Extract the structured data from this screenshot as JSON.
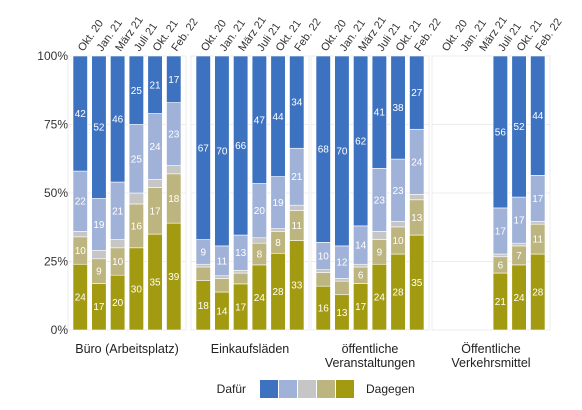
{
  "chart_data": {
    "type": "bar",
    "stacked": true,
    "orientation": "vertical",
    "y_axis": {
      "ticks": [
        "0%",
        "25%",
        "50%",
        "75%",
        "100%"
      ],
      "ylim": [
        0,
        100
      ],
      "unit": "%"
    },
    "x_categories": [
      "Okt. 20",
      "Jan. 21",
      "März 21",
      "Juli 21",
      "Okt. 21",
      "Feb. 22"
    ],
    "segment_colors": [
      "#a29a10",
      "#bdb57f",
      "#c6c6c6",
      "#a1b2d9",
      "#3d72c0"
    ],
    "legend": {
      "left_label": "Dafür",
      "right_label": "Dagegen",
      "colors_left_to_right": [
        "#3d72c0",
        "#a1b2d9",
        "#c6c6c6",
        "#bdb57f",
        "#a29a10"
      ],
      "placement": "bottom"
    },
    "panels": [
      {
        "title_lines": [
          "Büro (Arbeitsplatz)"
        ],
        "bars": [
          {
            "x": "Okt. 20",
            "segments": [
              24,
              10,
              2,
              22,
              42
            ]
          },
          {
            "x": "Jan. 21",
            "segments": [
              17,
              9,
              3,
              19,
              52
            ]
          },
          {
            "x": "März 21",
            "segments": [
              20,
              10,
              3,
              21,
              46
            ]
          },
          {
            "x": "Juli 21",
            "segments": [
              30,
              16,
              4,
              25,
              25
            ]
          },
          {
            "x": "Okt. 21",
            "segments": [
              35,
              17,
              3,
              24,
              21
            ]
          },
          {
            "x": "Feb. 22",
            "segments": [
              39,
              18,
              3,
              23,
              17
            ]
          }
        ]
      },
      {
        "title_lines": [
          "Einkaufsläden"
        ],
        "bars": [
          {
            "x": "Okt. 20",
            "segments": [
              18,
              5,
              1,
              9,
              67
            ]
          },
          {
            "x": "Jan. 21",
            "segments": [
              14,
              5,
              1,
              11,
              70
            ]
          },
          {
            "x": "März 21",
            "segments": [
              17,
              4,
              1,
              13,
              66
            ]
          },
          {
            "x": "Juli 21",
            "segments": [
              24,
              8,
              2,
              20,
              47
            ]
          },
          {
            "x": "Okt. 21",
            "segments": [
              28,
              8,
              1,
              19,
              44
            ]
          },
          {
            "x": "Feb. 22",
            "segments": [
              33,
              11,
              2,
              21,
              34
            ]
          }
        ]
      },
      {
        "title_lines": [
          "öffentliche",
          "Veranstaltungen"
        ],
        "bars": [
          {
            "x": "Okt. 20",
            "segments": [
              16,
              5,
              1,
              10,
              68
            ]
          },
          {
            "x": "Jan. 21",
            "segments": [
              13,
              5,
              1,
              12,
              70
            ]
          },
          {
            "x": "März 21",
            "segments": [
              17,
              6,
              1,
              14,
              62
            ]
          },
          {
            "x": "Juli 21",
            "segments": [
              24,
              9,
              3,
              23,
              41
            ]
          },
          {
            "x": "Okt. 21",
            "segments": [
              28,
              10,
              2,
              23,
              38
            ]
          },
          {
            "x": "Feb. 22",
            "segments": [
              35,
              13,
              2,
              24,
              27
            ]
          }
        ]
      },
      {
        "title_lines": [
          "Öffentliche",
          "Verkehrsmittel"
        ],
        "bars": [
          {
            "x": "Okt. 20",
            "segments": null
          },
          {
            "x": "Jan. 21",
            "segments": null
          },
          {
            "x": "März 21",
            "segments": null
          },
          {
            "x": "Juli 21",
            "segments": [
              21,
              6,
              1,
              17,
              56
            ]
          },
          {
            "x": "Okt. 21",
            "segments": [
              24,
              7,
              1,
              17,
              52
            ]
          },
          {
            "x": "Feb. 22",
            "segments": [
              28,
              11,
              1,
              17,
              44
            ]
          }
        ]
      }
    ]
  }
}
